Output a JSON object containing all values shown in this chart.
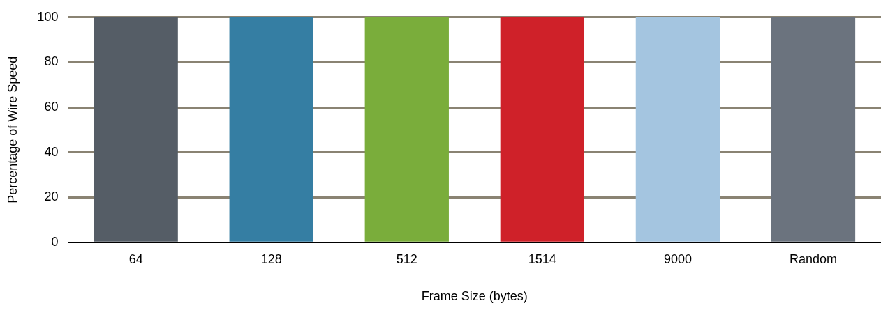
{
  "chart_data": {
    "type": "bar",
    "xlabel": "Frame Size (bytes)",
    "ylabel": "Percentage of Wire Speed",
    "categories": [
      "64",
      "128",
      "512",
      "1514",
      "9000",
      "Random"
    ],
    "values": [
      100,
      100,
      100,
      100,
      100,
      100
    ],
    "colors": [
      "#555d66",
      "#357ea3",
      "#7aad3b",
      "#cf2129",
      "#a4c5e0",
      "#6b737e"
    ],
    "ylim": [
      0,
      100
    ],
    "yticks": [
      0,
      20,
      40,
      60,
      80,
      100
    ],
    "grid": "y",
    "legend": false
  }
}
